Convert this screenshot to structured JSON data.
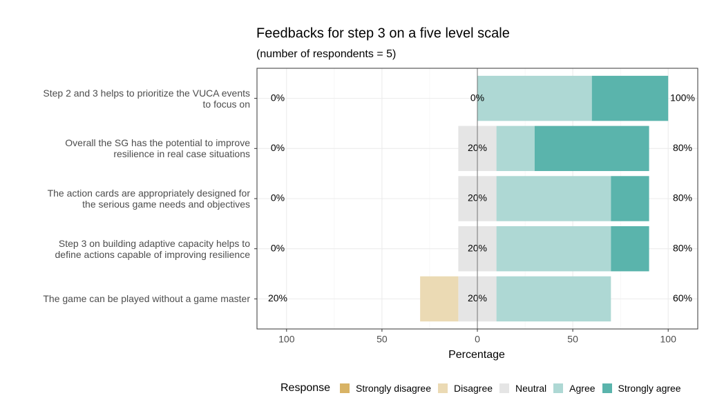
{
  "chart_data": {
    "type": "diverging_bar",
    "title": "Feedbacks for step 3 on a five level  scale",
    "subtitle": "(number of respondents = 5)",
    "x_label": "Percentage",
    "legend_title": "Response",
    "categories": [
      "Step 2 and 3 helps to prioritize the VUCA events\nto focus on",
      "Overall the SG has the potential to improve\nresilience in real case situations",
      "The action cards are appropriately designed for\nthe serious game needs and objectives",
      "Step 3 on building adaptive capacity helps to\ndefine actions capable of improving resilience",
      "The game can be played without a game master"
    ],
    "series": [
      {
        "name": "Strongly disagree",
        "color": "#d8b365",
        "side": "negative",
        "values": [
          0,
          0,
          0,
          0,
          0
        ]
      },
      {
        "name": "Disagree",
        "color": "#ebdab4",
        "side": "negative",
        "values": [
          0,
          0,
          0,
          0,
          20
        ]
      },
      {
        "name": "Neutral",
        "color": "#e5e5e5",
        "side": "center",
        "values": [
          0,
          20,
          20,
          20,
          20
        ]
      },
      {
        "name": "Agree",
        "color": "#aed8d4",
        "side": "positive",
        "values": [
          60,
          20,
          60,
          60,
          60
        ]
      },
      {
        "name": "Strongly agree",
        "color": "#5ab4ac",
        "side": "positive",
        "values": [
          40,
          60,
          20,
          20,
          0
        ]
      }
    ],
    "left_labels": [
      "0%",
      "0%",
      "0%",
      "0%",
      "20%"
    ],
    "center_labels": [
      "0%",
      "20%",
      "20%",
      "20%",
      "20%"
    ],
    "right_labels": [
      "100%",
      "80%",
      "80%",
      "80%",
      "60%"
    ],
    "xlim": [
      -115.5,
      115.5
    ],
    "xticks": [
      {
        "value": -100,
        "label": "100"
      },
      {
        "value": -50,
        "label": "50"
      },
      0,
      50,
      100
    ],
    "minor_xticks": [
      -75,
      -25,
      25,
      75
    ],
    "grid": true,
    "legend_position": "bottom"
  }
}
